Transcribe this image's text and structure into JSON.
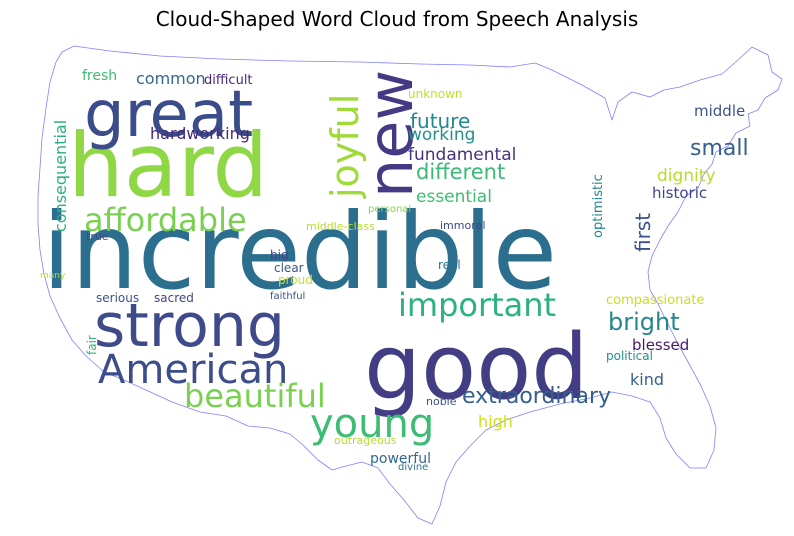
{
  "title": "Cloud-Shaped Word Cloud from Speech Analysis",
  "outline_color": "#8080ff",
  "words": [
    {
      "text": "incredible",
      "color": "#2c6e8e",
      "weight": 100
    },
    {
      "text": "hard",
      "color": "#8fd744",
      "weight": 96
    },
    {
      "text": "good",
      "color": "#433d84",
      "weight": 92
    },
    {
      "text": "great",
      "color": "#3b4c8a",
      "weight": 88
    },
    {
      "text": "strong",
      "color": "#3e4a89",
      "weight": 84
    },
    {
      "text": "new",
      "color": "#443983",
      "weight": 80
    },
    {
      "text": "American",
      "color": "#3d4d8a",
      "weight": 76
    },
    {
      "text": "important",
      "color": "#2db27d",
      "weight": 72
    },
    {
      "text": "young",
      "color": "#3dbc74",
      "weight": 70
    },
    {
      "text": "affordable",
      "color": "#7ad151",
      "weight": 68
    },
    {
      "text": "beautiful",
      "color": "#7ad151",
      "weight": 66
    },
    {
      "text": "joyful",
      "color": "#a0da39",
      "weight": 64
    },
    {
      "text": "extraordinary",
      "color": "#355f8d",
      "weight": 60
    },
    {
      "text": "bright",
      "color": "#24878e",
      "weight": 58
    },
    {
      "text": "future",
      "color": "#23888e",
      "weight": 56
    },
    {
      "text": "different",
      "color": "#3aba76",
      "weight": 55
    },
    {
      "text": "small",
      "color": "#355f8d",
      "weight": 54
    },
    {
      "text": "working",
      "color": "#21918c",
      "weight": 53
    },
    {
      "text": "first",
      "color": "#3b528b",
      "weight": 52
    },
    {
      "text": "essential",
      "color": "#3dbc74",
      "weight": 51
    },
    {
      "text": "fundamental",
      "color": "#46327e",
      "weight": 50
    },
    {
      "text": "hardworking",
      "color": "#472c7a",
      "weight": 49
    },
    {
      "text": "consequential",
      "color": "#29af7f",
      "weight": 48
    },
    {
      "text": "common",
      "color": "#31688e",
      "weight": 47
    },
    {
      "text": "dignity",
      "color": "#b5de2b",
      "weight": 46
    },
    {
      "text": "historic",
      "color": "#414487",
      "weight": 45
    },
    {
      "text": "middle",
      "color": "#3b528b",
      "weight": 44
    },
    {
      "text": "optimistic",
      "color": "#25858e",
      "weight": 43
    },
    {
      "text": "blessed",
      "color": "#481a6c",
      "weight": 42
    },
    {
      "text": "kind",
      "color": "#355f8d",
      "weight": 41
    },
    {
      "text": "high",
      "color": "#cde11d",
      "weight": 40
    },
    {
      "text": "fresh",
      "color": "#3dbc74",
      "weight": 39
    },
    {
      "text": "compassionate",
      "color": "#c8e020",
      "weight": 38
    },
    {
      "text": "powerful",
      "color": "#31688e",
      "weight": 37
    },
    {
      "text": "difficult",
      "color": "#482878",
      "weight": 36
    },
    {
      "text": "unknown",
      "color": "#c2df23",
      "weight": 35
    },
    {
      "text": "middle-class",
      "color": "#b5de2b",
      "weight": 34
    },
    {
      "text": "immoral",
      "color": "#3e4989",
      "weight": 33
    },
    {
      "text": "real",
      "color": "#2c728e",
      "weight": 32
    },
    {
      "text": "serious",
      "color": "#3b528b",
      "weight": 31
    },
    {
      "text": "sacred",
      "color": "#414487",
      "weight": 30
    },
    {
      "text": "clear",
      "color": "#38588c",
      "weight": 29
    },
    {
      "text": "proud",
      "color": "#c2df23",
      "weight": 28
    },
    {
      "text": "big",
      "color": "#414487",
      "weight": 27
    },
    {
      "text": "true",
      "color": "#3e4989",
      "weight": 26
    },
    {
      "text": "fair",
      "color": "#35b779",
      "weight": 25
    },
    {
      "text": "noble",
      "color": "#3b528b",
      "weight": 24
    },
    {
      "text": "political",
      "color": "#21918c",
      "weight": 23
    },
    {
      "text": "outrageous",
      "color": "#b5de2b",
      "weight": 22
    },
    {
      "text": "divine",
      "color": "#2a788e",
      "weight": 21
    },
    {
      "text": "faithful",
      "color": "#3b528b",
      "weight": 20
    },
    {
      "text": "personal",
      "color": "#86d549",
      "weight": 19
    },
    {
      "text": "many",
      "color": "#b5de2b",
      "weight": 18
    }
  ]
}
